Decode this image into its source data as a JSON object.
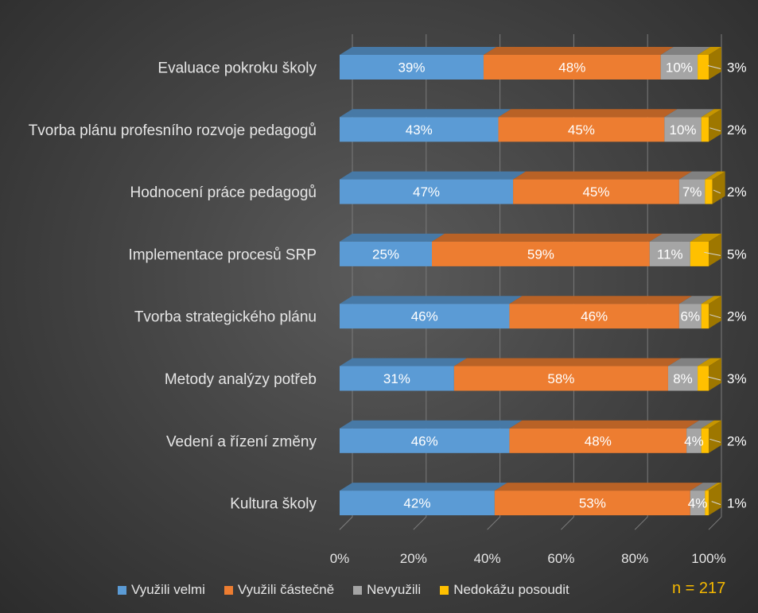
{
  "chart_data": {
    "type": "bar",
    "orientation": "horizontal",
    "stacked": "100%",
    "categories": [
      "Evaluace pokroku školy",
      "Tvorba plánu profesního rozvoje pedagogů",
      "Hodnocení práce pedagogů",
      "Implementace procesů SRP",
      "Tvorba strategického plánu",
      "Metody analýzy potřeb",
      "Vedení a řízení změny",
      "Kultura školy"
    ],
    "series": [
      {
        "name": "Využili velmi",
        "color": "#5b9bd5",
        "values": [
          39,
          43,
          47,
          25,
          46,
          31,
          46,
          42
        ]
      },
      {
        "name": "Využili částečně",
        "color": "#ed7d31",
        "values": [
          48,
          45,
          45,
          59,
          46,
          58,
          48,
          53
        ]
      },
      {
        "name": "Nevyužili",
        "color": "#a5a5a5",
        "values": [
          10,
          10,
          7,
          11,
          6,
          8,
          4,
          4
        ]
      },
      {
        "name": "Nedokážu posoudit",
        "color": "#ffc000",
        "values": [
          3,
          2,
          2,
          5,
          2,
          3,
          2,
          1
        ]
      }
    ],
    "xticks": [
      "0%",
      "20%",
      "40%",
      "60%",
      "80%",
      "100%"
    ],
    "xlim": [
      0,
      100
    ],
    "legend_position": "bottom",
    "annotation": "n = 217"
  }
}
